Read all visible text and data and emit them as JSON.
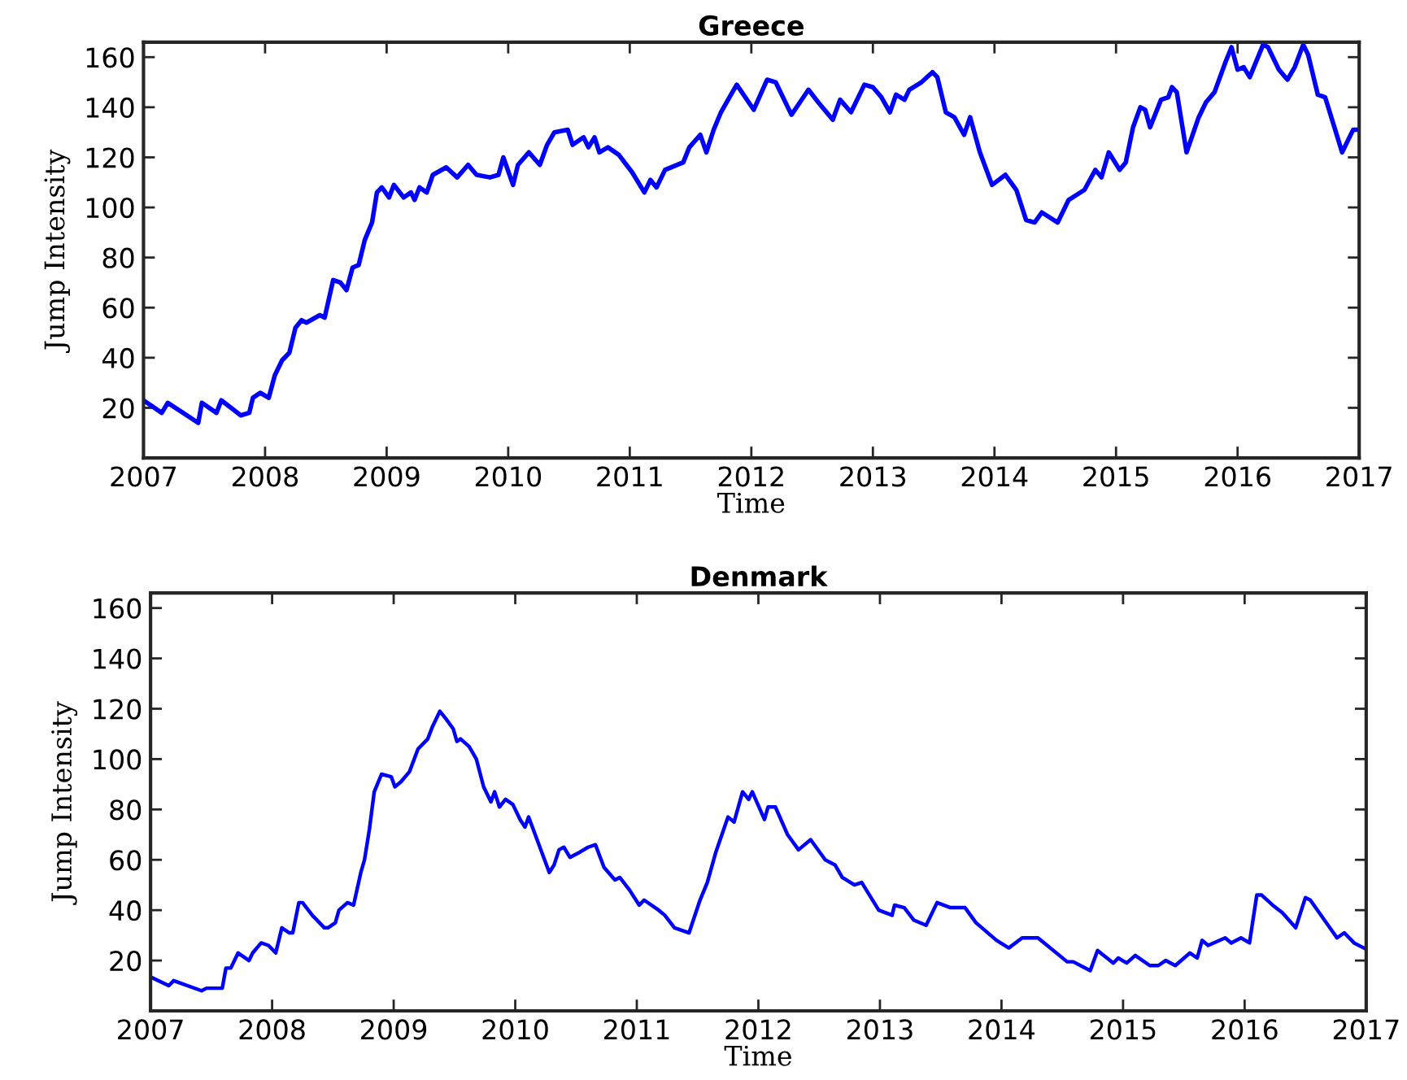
{
  "chart_data": [
    {
      "type": "line",
      "title": "Greece",
      "xlabel": "Time",
      "ylabel": "Jump Intensity",
      "xlim": [
        2007,
        2017
      ],
      "xticks": [
        2007,
        2008,
        2009,
        2010,
        2011,
        2012,
        2013,
        2014,
        2015,
        2016,
        2017
      ],
      "ylim": [
        0,
        166
      ],
      "yticks": [
        20,
        40,
        60,
        80,
        100,
        120,
        140,
        160
      ],
      "series": [
        {
          "color": "#0000ff",
          "x": [
            2007.0,
            2007.15,
            2007.2,
            2007.45,
            2007.48,
            2007.6,
            2007.64,
            2007.8,
            2007.87,
            2007.9,
            2007.96,
            2008.03,
            2008.08,
            2008.14,
            2008.2,
            2008.25,
            2008.3,
            2008.34,
            2008.45,
            2008.49,
            2008.56,
            2008.62,
            2008.67,
            2008.72,
            2008.77,
            2008.82,
            2008.88,
            2008.92,
            2008.96,
            2009.02,
            2009.06,
            2009.14,
            2009.2,
            2009.23,
            2009.27,
            2009.33,
            2009.38,
            2009.49,
            2009.58,
            2009.67,
            2009.74,
            2009.85,
            2009.92,
            2009.96,
            2010.04,
            2010.08,
            2010.17,
            2010.26,
            2010.32,
            2010.38,
            2010.49,
            2010.53,
            2010.62,
            2010.66,
            2010.71,
            2010.75,
            2010.82,
            2010.91,
            2011.02,
            2011.12,
            2011.17,
            2011.22,
            2011.29,
            2011.44,
            2011.49,
            2011.58,
            2011.63,
            2011.69,
            2011.75,
            2011.82,
            2011.88,
            2012.02,
            2012.13,
            2012.2,
            2012.33,
            2012.4,
            2012.47,
            2012.55,
            2012.67,
            2012.73,
            2012.82,
            2012.93,
            2013.0,
            2013.07,
            2013.14,
            2013.19,
            2013.26,
            2013.3,
            2013.4,
            2013.49,
            2013.53,
            2013.6,
            2013.67,
            2013.75,
            2013.8,
            2013.88,
            2013.98,
            2014.09,
            2014.18,
            2014.26,
            2014.33,
            2014.39,
            2014.52,
            2014.61,
            2014.74,
            2014.83,
            2014.88,
            2014.94,
            2015.03,
            2015.08,
            2015.14,
            2015.2,
            2015.24,
            2015.28,
            2015.37,
            2015.43,
            2015.46,
            2015.5,
            2015.58,
            2015.68,
            2015.74,
            2015.81,
            2015.9,
            2015.95,
            2016.0,
            2016.05,
            2016.1,
            2016.21,
            2016.25,
            2016.34,
            2016.41,
            2016.47,
            2016.54,
            2016.58,
            2016.66,
            2016.72,
            2016.79,
            2016.86,
            2016.95,
            2017.0
          ],
          "values": [
            23,
            18,
            22,
            14,
            22,
            18,
            23,
            17,
            18,
            24,
            26,
            24,
            33,
            39,
            42,
            52,
            55,
            54,
            57,
            56,
            71,
            70,
            67,
            76,
            77,
            87,
            94,
            106,
            108,
            104,
            109,
            104,
            106,
            103,
            108,
            106,
            113,
            116,
            112,
            117,
            113,
            112,
            113,
            120,
            109,
            117,
            122,
            117,
            125,
            130,
            131,
            125,
            128,
            124,
            128,
            122,
            124,
            121,
            114,
            106,
            111,
            108,
            115,
            118,
            124,
            129,
            122,
            131,
            138,
            144,
            149,
            139,
            151,
            150,
            137,
            142,
            147,
            142,
            135,
            143,
            138,
            149,
            148,
            144,
            138,
            145,
            143,
            147,
            150,
            154,
            152,
            138,
            136,
            129,
            136,
            122,
            109,
            113,
            107,
            95,
            94,
            98,
            94,
            103,
            107,
            115,
            112,
            122,
            115,
            118,
            132,
            140,
            139,
            132,
            143,
            144,
            148,
            146,
            122,
            136,
            142,
            146,
            158,
            164,
            155,
            156,
            152,
            165,
            164,
            155,
            151,
            156,
            165,
            161,
            145,
            144,
            133,
            122,
            131,
            131
          ]
        }
      ]
    },
    {
      "type": "line",
      "title": "Denmark",
      "xlabel": "Time",
      "ylabel": "Jump Intensity",
      "xlim": [
        2007,
        2017
      ],
      "xticks": [
        2007,
        2008,
        2009,
        2010,
        2011,
        2012,
        2013,
        2014,
        2015,
        2016,
        2017
      ],
      "ylim": [
        0,
        166
      ],
      "yticks": [
        20,
        40,
        60,
        80,
        100,
        120,
        140,
        160
      ],
      "series": [
        {
          "color": "#0000ff",
          "x": [
            2007.0,
            2007.15,
            2007.19,
            2007.42,
            2007.46,
            2007.59,
            2007.62,
            2007.66,
            2007.72,
            2007.81,
            2007.84,
            2007.91,
            2007.97,
            2008.03,
            2008.08,
            2008.14,
            2008.17,
            2008.22,
            2008.25,
            2008.33,
            2008.43,
            2008.46,
            2008.52,
            2008.55,
            2008.62,
            2008.67,
            2008.73,
            2008.76,
            2008.8,
            2008.84,
            2008.9,
            2008.98,
            2009.01,
            2009.06,
            2009.13,
            2009.2,
            2009.28,
            2009.32,
            2009.38,
            2009.43,
            2009.49,
            2009.52,
            2009.55,
            2009.62,
            2009.68,
            2009.74,
            2009.8,
            2009.83,
            2009.87,
            2009.92,
            2009.98,
            2010.04,
            2010.08,
            2010.11,
            2010.28,
            2010.32,
            2010.36,
            2010.4,
            2010.45,
            2010.53,
            2010.6,
            2010.66,
            2010.73,
            2010.82,
            2010.86,
            2010.94,
            2011.02,
            2011.06,
            2011.18,
            2011.23,
            2011.31,
            2011.43,
            2011.52,
            2011.58,
            2011.65,
            2011.75,
            2011.8,
            2011.87,
            2011.92,
            2011.95,
            2012.05,
            2012.08,
            2012.14,
            2012.24,
            2012.33,
            2012.43,
            2012.55,
            2012.63,
            2012.69,
            2012.79,
            2012.85,
            2012.99,
            2013.1,
            2013.12,
            2013.2,
            2013.28,
            2013.38,
            2013.47,
            2013.58,
            2013.7,
            2013.79,
            2013.96,
            2014.06,
            2014.17,
            2014.3,
            2014.54,
            2014.59,
            2014.73,
            2014.79,
            2014.92,
            2014.96,
            2015.03,
            2015.1,
            2015.22,
            2015.29,
            2015.35,
            2015.43,
            2015.55,
            2015.61,
            2015.65,
            2015.7,
            2015.84,
            2015.89,
            2015.97,
            2016.04,
            2016.1,
            2016.14,
            2016.23,
            2016.31,
            2016.42,
            2016.5,
            2016.54,
            2016.76,
            2016.82,
            2016.9,
            2016.98
          ],
          "values": [
            13.5,
            10,
            12,
            8,
            9,
            9,
            17,
            17,
            23,
            20,
            23,
            27,
            26,
            23,
            33,
            31,
            31,
            43,
            43,
            38,
            33,
            33,
            35,
            40,
            43,
            42,
            55,
            60,
            72,
            87,
            94,
            93,
            89,
            91,
            95,
            104,
            108,
            113,
            119,
            116,
            112,
            107,
            108,
            105,
            100,
            89,
            83,
            87,
            81,
            84,
            82,
            76,
            73,
            77,
            55,
            58,
            64,
            65,
            61,
            63,
            65,
            66,
            57,
            52,
            53,
            48,
            42,
            44,
            40,
            38,
            33,
            31,
            44,
            51,
            63,
            77,
            75,
            87,
            84,
            87,
            76,
            81,
            81,
            70,
            64,
            68,
            60,
            58,
            53,
            50,
            51,
            40,
            38,
            42,
            41,
            36,
            34,
            43,
            41,
            41,
            35,
            28,
            25,
            29,
            29,
            19.5,
            19.5,
            16,
            24,
            19,
            21,
            19,
            22,
            18,
            18,
            20,
            18,
            23,
            21,
            28,
            26,
            29,
            27,
            29,
            27,
            46,
            46,
            42,
            39,
            33,
            45,
            44,
            29,
            31,
            27,
            25
          ]
        }
      ]
    }
  ]
}
